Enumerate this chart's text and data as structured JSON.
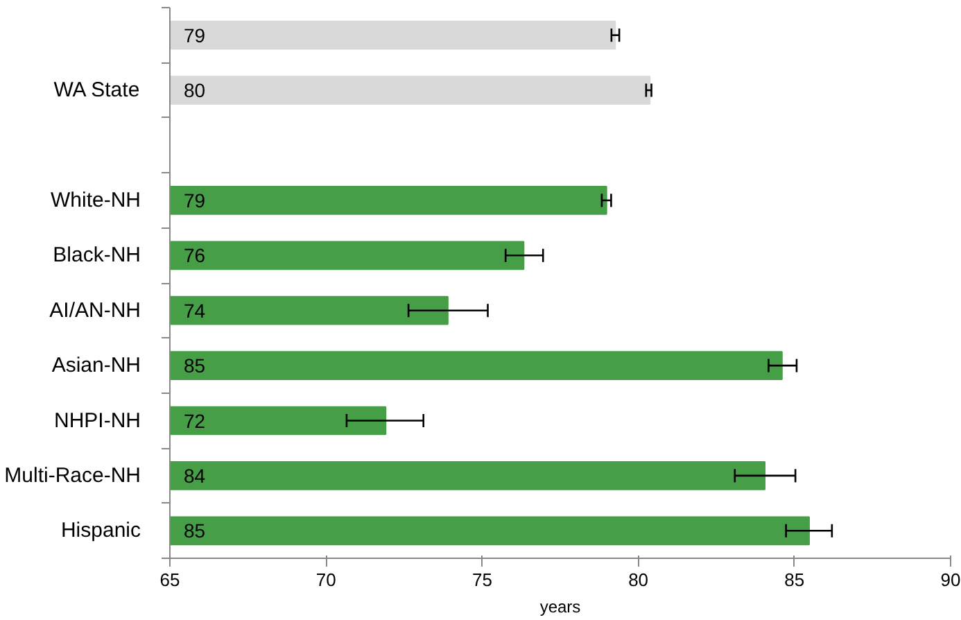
{
  "chart_data": {
    "type": "bar",
    "orientation": "horizontal",
    "xlabel": "years",
    "categories": [
      null,
      "WA State",
      null,
      "White-NH",
      "Black-NH",
      "AI/AN-NH",
      "Asian-NH",
      "NHPI-NH",
      "Multi-Race-NH",
      "Hispanic"
    ],
    "values": [
      79.26,
      80.37,
      null,
      78.98,
      76.33,
      73.9,
      84.6,
      71.91,
      84.05,
      85.47
    ],
    "colors": [
      "#d9d9d9",
      "#d9d9d9",
      null,
      "#469e47",
      "#469e47",
      "#469e47",
      "#469e47",
      "#469e47",
      "#469e47",
      "#469e47"
    ],
    "errors": [
      [
        79.14,
        79.39
      ],
      [
        80.25,
        80.42
      ],
      null,
      [
        78.83,
        79.13
      ],
      [
        75.75,
        76.95
      ],
      [
        72.64,
        75.18
      ],
      [
        84.17,
        85.07
      ],
      [
        70.66,
        73.12
      ],
      [
        83.09,
        85.03
      ],
      [
        84.73,
        86.2
      ]
    ],
    "value_labels": [
      "79",
      "80",
      null,
      "79",
      "76",
      "74",
      "85",
      "72",
      "84",
      "85"
    ],
    "xlim": [
      65,
      90
    ],
    "xticks": [
      65,
      70,
      75,
      80,
      85,
      90
    ],
    "grid": false
  }
}
